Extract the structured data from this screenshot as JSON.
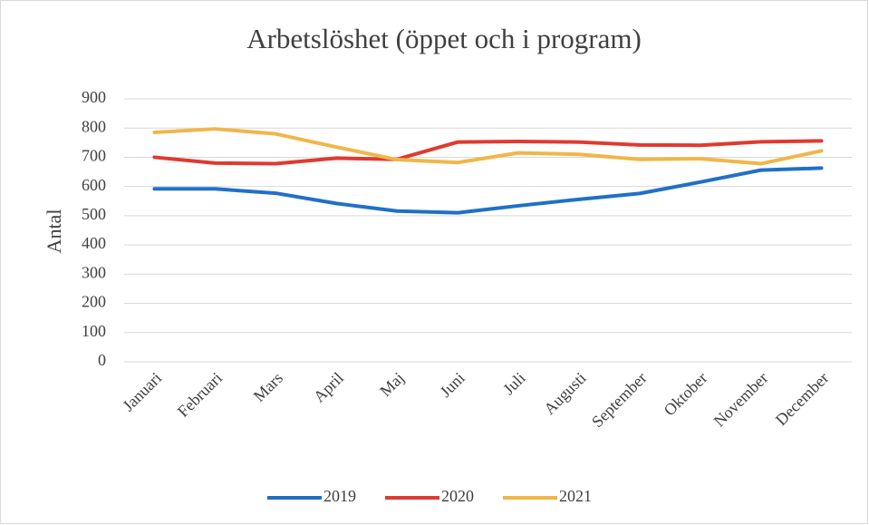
{
  "chart_data": {
    "type": "line",
    "title": "Arbetslöshet (öppet och i program)",
    "y_label": "Antal",
    "categories": [
      "Januari",
      "Februari",
      "Mars",
      "April",
      "Maj",
      "Juni",
      "Juli",
      "Augusti",
      "September",
      "Oktober",
      "November",
      "December"
    ],
    "series": [
      {
        "name": "2019",
        "color": "#2070c8",
        "values": [
          592,
          592,
          577,
          542,
          516,
          510,
          534,
          556,
          576,
          615,
          656,
          663
        ]
      },
      {
        "name": "2020",
        "color": "#e03a30",
        "values": [
          700,
          680,
          678,
          697,
          693,
          752,
          754,
          752,
          742,
          741,
          753,
          756
        ]
      },
      {
        "name": "2021",
        "color": "#f0b64a",
        "values": [
          785,
          797,
          780,
          735,
          692,
          682,
          715,
          710,
          693,
          695,
          678,
          722
        ]
      }
    ],
    "ylim": [
      0,
      900
    ],
    "yticks": [
      0,
      100,
      200,
      300,
      400,
      500,
      600,
      700,
      800,
      900
    ],
    "grid": true,
    "legend": "bottom"
  }
}
